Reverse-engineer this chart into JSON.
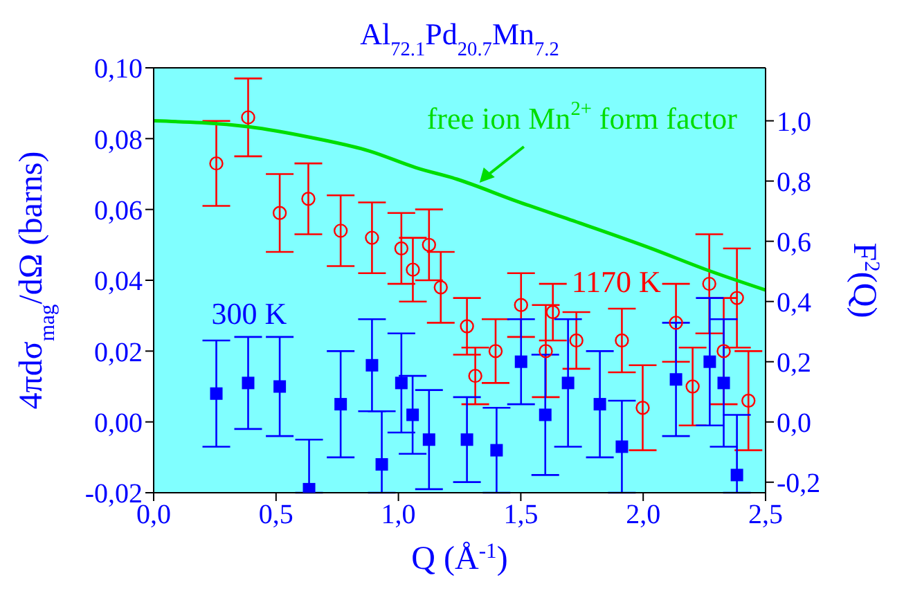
{
  "chart_data": {
    "type": "scatter",
    "title": "Al$_{72.1}$Pd$_{20.7}$Mn$_{7.2}$",
    "xlabel": "Q (Å$^{-1}$)",
    "ylabel": "4πdσ$_{mag}$/dΩ (barns)",
    "y2label": "F$^{2}$(Q)",
    "xlim": [
      0,
      2.5
    ],
    "xticks": [
      {
        "value": 0,
        "label": "0,0"
      },
      {
        "value": 0.5,
        "label": "0,5"
      },
      {
        "value": 1,
        "label": "1,0"
      },
      {
        "value": 1.5,
        "label": "1,5"
      },
      {
        "value": 2,
        "label": "2,0"
      },
      {
        "value": 2.5,
        "label": "2,5"
      }
    ],
    "ylim": [
      -0.02,
      0.1
    ],
    "yticks": [
      {
        "value": -0.02,
        "label": "-0,02"
      },
      {
        "value": 0,
        "label": "0,00"
      },
      {
        "value": 0.02,
        "label": "0,02"
      },
      {
        "value": 0.04,
        "label": "0,04"
      },
      {
        "value": 0.06,
        "label": "0,06"
      },
      {
        "value": 0.08,
        "label": "0,08"
      },
      {
        "value": 0.1,
        "label": "0,10"
      }
    ],
    "y2lim": [
      -0.235,
      1.176
    ],
    "y2ticks": [
      {
        "value": -0.2,
        "label": "-0,2"
      },
      {
        "value": 0,
        "label": "0,0"
      },
      {
        "value": 0.2,
        "label": "0,2"
      },
      {
        "value": 0.4,
        "label": "0,4"
      },
      {
        "value": 0.6,
        "label": "0,6"
      },
      {
        "value": 0.8,
        "label": "0,8"
      },
      {
        "value": 1,
        "label": "1,0"
      }
    ],
    "legend": false,
    "grid": false,
    "series": [
      {
        "name": "1170 K",
        "color": "#ff0000",
        "marker": "circle",
        "x": [
          0.256,
          0.386,
          0.515,
          0.632,
          0.764,
          0.892,
          1.012,
          1.059,
          1.125,
          1.173,
          1.28,
          1.314,
          1.397,
          1.501,
          1.602,
          1.631,
          1.727,
          1.913,
          1.998,
          2.134,
          2.202,
          2.27,
          2.329,
          2.383,
          2.43
        ],
        "values": [
          0.073,
          0.086,
          0.059,
          0.063,
          0.054,
          0.052,
          0.049,
          0.043,
          0.05,
          0.038,
          0.027,
          0.013,
          0.02,
          0.033,
          0.02,
          0.031,
          0.023,
          0.023,
          0.004,
          0.028,
          0.01,
          0.039,
          0.02,
          0.035,
          0.006
        ],
        "errors": [
          0.012,
          0.011,
          0.011,
          0.01,
          0.01,
          0.01,
          0.01,
          0.009,
          0.01,
          0.01,
          0.008,
          0.008,
          0.009,
          0.009,
          0.013,
          0.008,
          0.008,
          0.009,
          0.012,
          0.011,
          0.011,
          0.014,
          0.015,
          0.014,
          0.014
        ]
      },
      {
        "name": "300 K",
        "color": "#0000ff",
        "marker": "square",
        "x": [
          0.256,
          0.386,
          0.515,
          0.635,
          0.764,
          0.892,
          0.932,
          1.012,
          1.058,
          1.125,
          1.28,
          1.401,
          1.501,
          1.6,
          1.693,
          1.823,
          1.913,
          2.134,
          2.272,
          2.329,
          2.383
        ],
        "values": [
          0.008,
          0.011,
          0.01,
          -0.019,
          0.005,
          0.016,
          -0.012,
          0.011,
          0.002,
          -0.005,
          -0.005,
          -0.008,
          0.017,
          0.002,
          0.011,
          0.005,
          -0.007,
          0.012,
          0.017,
          0.011,
          -0.015
        ],
        "errors": [
          0.015,
          0.013,
          0.014,
          [
            -0.02,
            -0.005
          ],
          0.015,
          0.013,
          [
            -0.02,
            0.003
          ],
          0.014,
          0.011,
          0.014,
          0.012,
          0.012,
          0.012,
          0.017,
          0.018,
          0.015,
          0.013,
          0.016,
          0.018,
          0.018,
          [
            -0.02,
            0.002
          ]
        ]
      },
      {
        "type": "line",
        "name": "free ion Mn$^{2+}$ form factor",
        "axis": "y2",
        "color": "#00dd00",
        "marker": "none",
        "x": [
          0,
          0.39,
          0.64,
          0.88,
          1.07,
          1.24,
          1.48,
          1.75,
          2.03,
          2.26,
          2.5
        ],
        "values": [
          1.0,
          0.98,
          0.945,
          0.9,
          0.845,
          0.806,
          0.734,
          0.658,
          0.577,
          0.505,
          0.438
        ]
      }
    ]
  }
}
